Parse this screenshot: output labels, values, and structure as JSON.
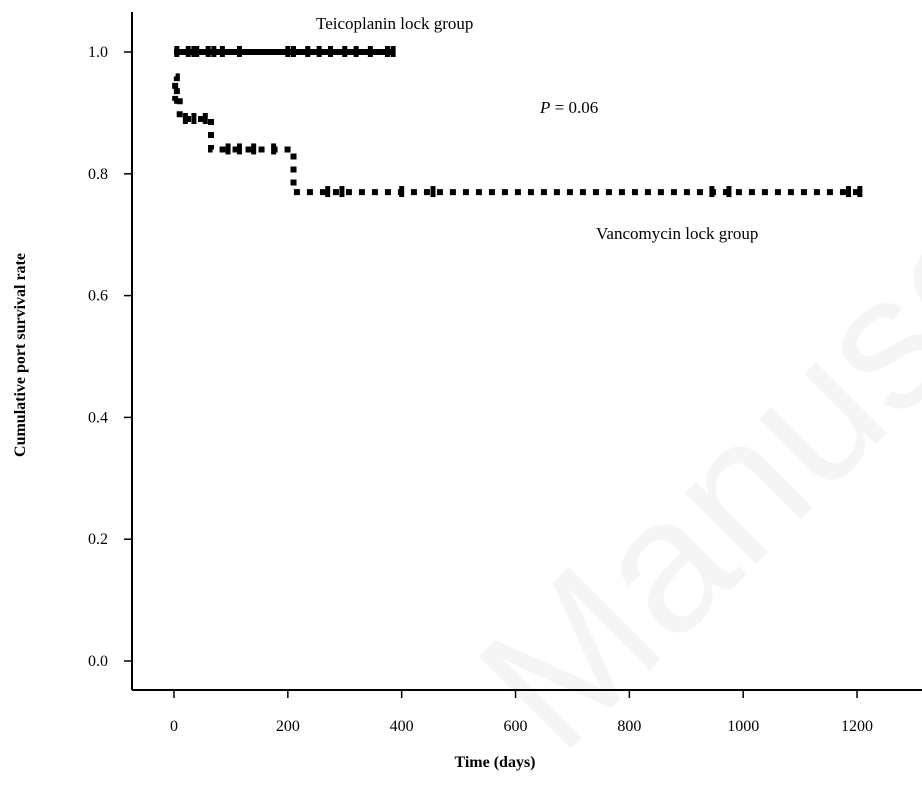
{
  "chart_data": {
    "type": "line",
    "step": true,
    "xlabel": "Time (days)",
    "ylabel": "Cumulative port survival rate",
    "xlim": [
      0,
      1200
    ],
    "ylim": [
      0.0,
      1.0
    ],
    "x_ticks": [
      0,
      200,
      400,
      600,
      800,
      1000,
      1200
    ],
    "y_ticks": [
      "0.0",
      "0.2",
      "0.4",
      "0.6",
      "0.8",
      "1.0"
    ],
    "grid": false,
    "annotations": {
      "p_label": "P",
      "p_value": " = 0.06"
    },
    "series": [
      {
        "name": "Teicoplanin lock group",
        "style": "solid",
        "color": "#000000",
        "x": [
          0,
          385
        ],
        "y": [
          1.0,
          1.0
        ],
        "censored": [
          5,
          25,
          35,
          40,
          60,
          70,
          85,
          115,
          200,
          210,
          235,
          255,
          275,
          300,
          320,
          345,
          375,
          385
        ]
      },
      {
        "name": "Vancomycin lock group",
        "style": "dotted",
        "color": "#000000",
        "x": [
          0,
          2,
          5,
          10,
          60,
          65,
          200,
          210,
          1205
        ],
        "y": [
          0.92,
          0.96,
          0.93,
          0.89,
          0.89,
          0.84,
          0.84,
          0.77,
          0.77
        ],
        "censored": [
          20,
          35,
          55,
          95,
          115,
          140,
          175,
          270,
          295,
          400,
          455,
          945,
          975,
          1185,
          1205
        ]
      }
    ]
  }
}
